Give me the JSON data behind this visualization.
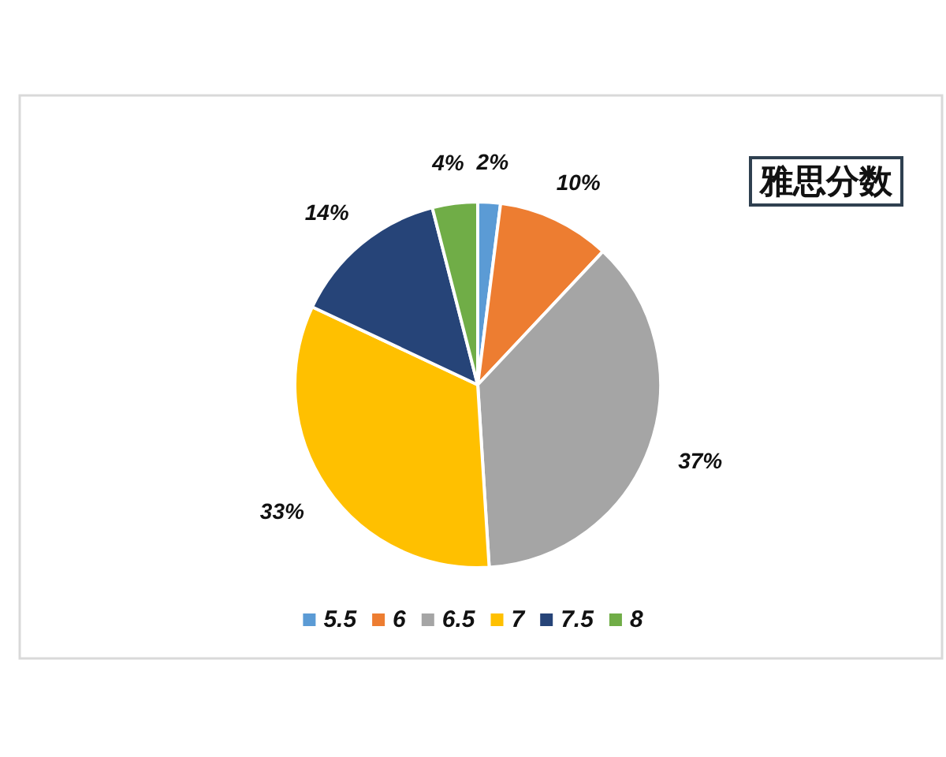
{
  "chart_data": {
    "type": "pie",
    "title": "雅思分数",
    "categories": [
      "5.5",
      "6",
      "6.5",
      "7",
      "7.5",
      "8"
    ],
    "values": [
      2,
      10,
      37,
      33,
      14,
      4
    ],
    "colors": [
      "#5b9bd5",
      "#ed7d31",
      "#a5a5a5",
      "#ffc000",
      "#264478",
      "#70ad47"
    ],
    "value_labels": [
      "2%",
      "10%",
      "37%",
      "33%",
      "14%",
      "4%"
    ],
    "legend": "bottom"
  }
}
